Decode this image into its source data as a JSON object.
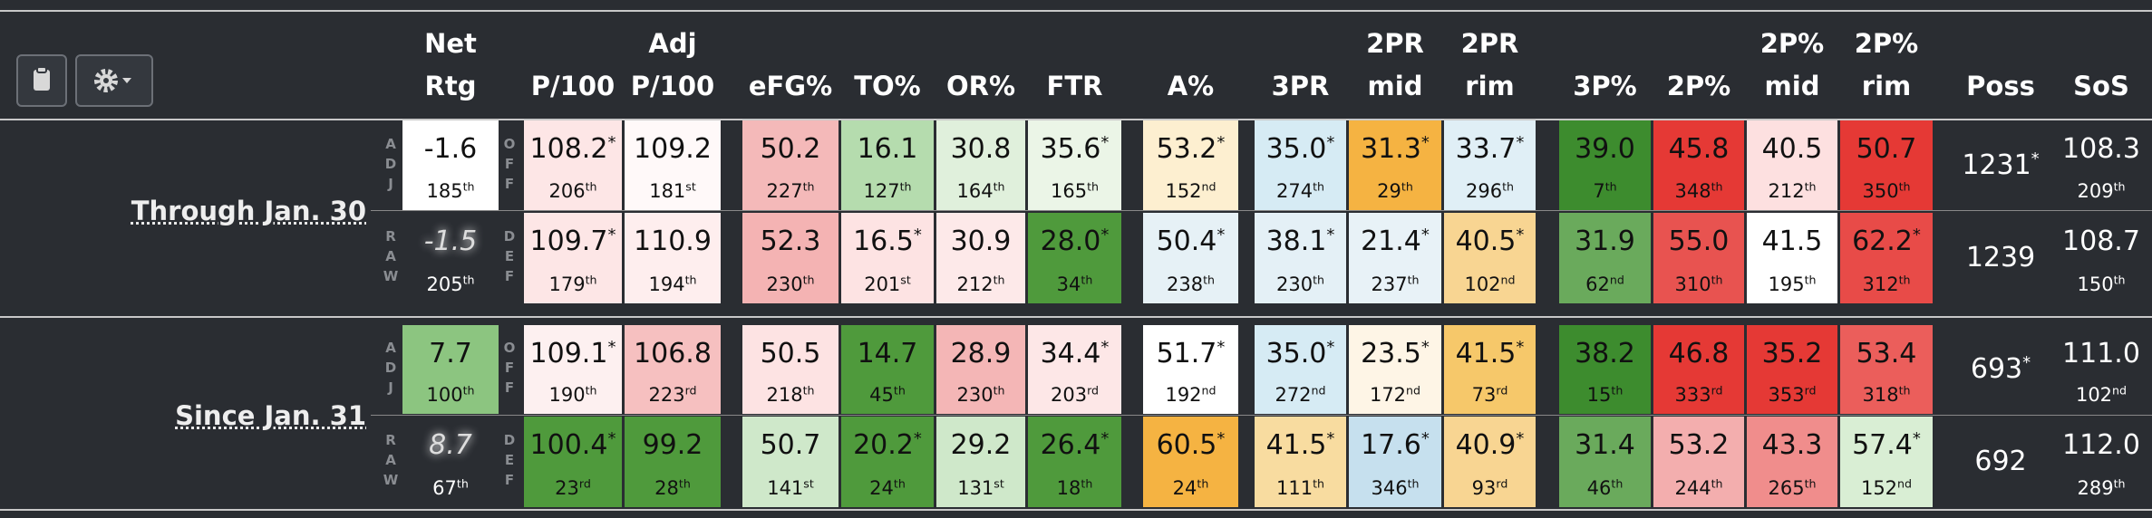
{
  "headers": [
    [
      "Net",
      "Rtg"
    ],
    [
      "P/100"
    ],
    [
      "Adj",
      "P/100"
    ],
    [
      "eFG%"
    ],
    [
      "TO%"
    ],
    [
      "OR%"
    ],
    [
      "FTR"
    ],
    [
      "A%"
    ],
    [
      "3PR"
    ],
    [
      "2PR",
      "mid"
    ],
    [
      "2PR",
      "rim"
    ],
    [
      "3P%"
    ],
    [
      "2P%"
    ],
    [
      "2P%",
      "mid"
    ],
    [
      "2P%",
      "rim"
    ],
    [
      "Poss"
    ],
    [
      "SoS"
    ]
  ],
  "sections": [
    {
      "label": "Through Jan. 30",
      "rows": [
        {
          "side": "ADJ",
          "side2": "OFF",
          "cells": [
            {
              "v": "-1.6",
              "r": "185",
              "s": "th",
              "bg": "#ffffff"
            },
            {
              "v": "108.2",
              "star": "*",
              "r": "206",
              "s": "th",
              "bg": "#fde6e6"
            },
            {
              "v": "109.2",
              "r": "181",
              "s": "st",
              "bg": "#fff9f9"
            },
            {
              "v": "50.2",
              "r": "227",
              "s": "th",
              "bg": "#f4b9b9"
            },
            {
              "v": "16.1",
              "r": "127",
              "s": "th",
              "bg": "#b5dcae"
            },
            {
              "v": "30.8",
              "r": "164",
              "s": "th",
              "bg": "#e0f0dc"
            },
            {
              "v": "35.6",
              "star": "*",
              "r": "165",
              "s": "th",
              "bg": "#ebf5e7"
            },
            {
              "v": "53.2",
              "star": "*",
              "r": "152",
              "s": "nd",
              "bg": "#fdefd0"
            },
            {
              "v": "35.0",
              "star": "*",
              "r": "274",
              "s": "th",
              "bg": "#d6ebf4"
            },
            {
              "v": "31.3",
              "star": "*",
              "r": "29",
              "s": "th",
              "bg": "#f5b342"
            },
            {
              "v": "33.7",
              "star": "*",
              "r": "296",
              "s": "th",
              "bg": "#e0eff6"
            },
            {
              "v": "39.0",
              "r": "7",
              "s": "th",
              "bg": "#3d8c2e"
            },
            {
              "v": "45.8",
              "r": "348",
              "s": "th",
              "bg": "#e53935"
            },
            {
              "v": "40.5",
              "r": "212",
              "s": "th",
              "bg": "#fde0e0"
            },
            {
              "v": "50.7",
              "r": "350",
              "s": "th",
              "bg": "#e53935"
            },
            {
              "v": "1231",
              "star": "*"
            },
            {
              "v": "108.3",
              "r": "209",
              "s": "th"
            }
          ]
        },
        {
          "side": "RAW",
          "side2": "DEF",
          "cells": [
            {
              "v": "-1.5",
              "r": "205",
              "s": "th"
            },
            {
              "v": "109.7",
              "star": "*",
              "r": "179",
              "s": "th",
              "bg": "#fde6e6"
            },
            {
              "v": "110.9",
              "r": "194",
              "s": "th",
              "bg": "#feeeee"
            },
            {
              "v": "52.3",
              "r": "230",
              "s": "th",
              "bg": "#f4b3b3"
            },
            {
              "v": "16.5",
              "star": "*",
              "r": "201",
              "s": "st",
              "bg": "#fde3e3"
            },
            {
              "v": "30.9",
              "r": "212",
              "s": "th",
              "bg": "#fde9e9"
            },
            {
              "v": "28.0",
              "star": "*",
              "r": "34",
              "s": "th",
              "bg": "#4f9a3c"
            },
            {
              "v": "50.4",
              "star": "*",
              "r": "238",
              "s": "th",
              "bg": "#e6f1f6"
            },
            {
              "v": "38.1",
              "star": "*",
              "r": "230",
              "s": "th",
              "bg": "#e4f0f6"
            },
            {
              "v": "21.4",
              "star": "*",
              "r": "237",
              "s": "th",
              "bg": "#e8f2f7"
            },
            {
              "v": "40.5",
              "star": "*",
              "r": "102",
              "s": "nd",
              "bg": "#f8d592"
            },
            {
              "v": "31.9",
              "r": "62",
              "s": "nd",
              "bg": "#6aaa5c"
            },
            {
              "v": "55.0",
              "r": "310",
              "s": "th",
              "bg": "#e85350"
            },
            {
              "v": "41.5",
              "r": "195",
              "s": "th",
              "bg": "#ffffff"
            },
            {
              "v": "62.2",
              "star": "*",
              "r": "312",
              "s": "th",
              "bg": "#e84b48"
            },
            {
              "v": "1239"
            },
            {
              "v": "108.7",
              "r": "150",
              "s": "th"
            }
          ]
        }
      ]
    },
    {
      "label": "Since Jan. 31",
      "rows": [
        {
          "side": "ADJ",
          "side2": "OFF",
          "cells": [
            {
              "v": "7.7",
              "r": "100",
              "s": "th",
              "bg": "#8cc580"
            },
            {
              "v": "109.1",
              "star": "*",
              "r": "190",
              "s": "th",
              "bg": "#fdf0f0"
            },
            {
              "v": "106.8",
              "r": "223",
              "s": "rd",
              "bg": "#f6c0c0"
            },
            {
              "v": "50.5",
              "r": "218",
              "s": "th",
              "bg": "#fde3e3"
            },
            {
              "v": "14.7",
              "r": "45",
              "s": "th",
              "bg": "#4f9a3c"
            },
            {
              "v": "28.9",
              "r": "230",
              "s": "th",
              "bg": "#f4b6b6"
            },
            {
              "v": "34.4",
              "star": "*",
              "r": "203",
              "s": "rd",
              "bg": "#fde7e7"
            },
            {
              "v": "51.7",
              "star": "*",
              "r": "192",
              "s": "nd",
              "bg": "#ffffff"
            },
            {
              "v": "35.0",
              "star": "*",
              "r": "272",
              "s": "nd",
              "bg": "#d6ebf4"
            },
            {
              "v": "23.5",
              "star": "*",
              "r": "172",
              "s": "nd",
              "bg": "#fef5e6"
            },
            {
              "v": "41.5",
              "star": "*",
              "r": "73",
              "s": "rd",
              "bg": "#f6c86a"
            },
            {
              "v": "38.2",
              "r": "15",
              "s": "th",
              "bg": "#3d8c2e"
            },
            {
              "v": "46.8",
              "r": "333",
              "s": "rd",
              "bg": "#e53935"
            },
            {
              "v": "35.2",
              "r": "353",
              "s": "rd",
              "bg": "#e53935"
            },
            {
              "v": "53.4",
              "r": "318",
              "s": "th",
              "bg": "#eb5e5b"
            },
            {
              "v": "693",
              "star": "*"
            },
            {
              "v": "111.0",
              "r": "102",
              "s": "nd"
            }
          ]
        },
        {
          "side": "RAW",
          "side2": "DEF",
          "cells": [
            {
              "v": "8.7",
              "r": "67",
              "s": "th"
            },
            {
              "v": "100.4",
              "star": "*",
              "r": "23",
              "s": "rd",
              "bg": "#4f9a3c"
            },
            {
              "v": "99.2",
              "r": "28",
              "s": "th",
              "bg": "#4f9a3c"
            },
            {
              "v": "50.7",
              "r": "141",
              "s": "st",
              "bg": "#cfe8ca"
            },
            {
              "v": "20.2",
              "star": "*",
              "r": "24",
              "s": "th",
              "bg": "#4f9a3c"
            },
            {
              "v": "29.2",
              "r": "131",
              "s": "st",
              "bg": "#cfe8ca"
            },
            {
              "v": "26.4",
              "star": "*",
              "r": "18",
              "s": "th",
              "bg": "#4f9a3c"
            },
            {
              "v": "60.5",
              "star": "*",
              "r": "24",
              "s": "th",
              "bg": "#f5b342"
            },
            {
              "v": "41.5",
              "star": "*",
              "r": "111",
              "s": "th",
              "bg": "#f8dca0"
            },
            {
              "v": "17.6",
              "star": "*",
              "r": "346",
              "s": "th",
              "bg": "#c6e0ee"
            },
            {
              "v": "40.9",
              "star": "*",
              "r": "93",
              "s": "rd",
              "bg": "#f8d592"
            },
            {
              "v": "31.4",
              "r": "46",
              "s": "th",
              "bg": "#6aaa5c"
            },
            {
              "v": "53.2",
              "r": "244",
              "s": "th",
              "bg": "#f3aeae"
            },
            {
              "v": "43.3",
              "r": "265",
              "s": "th",
              "bg": "#f08d8c"
            },
            {
              "v": "57.4",
              "star": "*",
              "r": "152",
              "s": "nd",
              "bg": "#d9eed4"
            },
            {
              "v": "692"
            },
            {
              "v": "112.0",
              "r": "289",
              "s": "th"
            }
          ]
        }
      ]
    }
  ]
}
